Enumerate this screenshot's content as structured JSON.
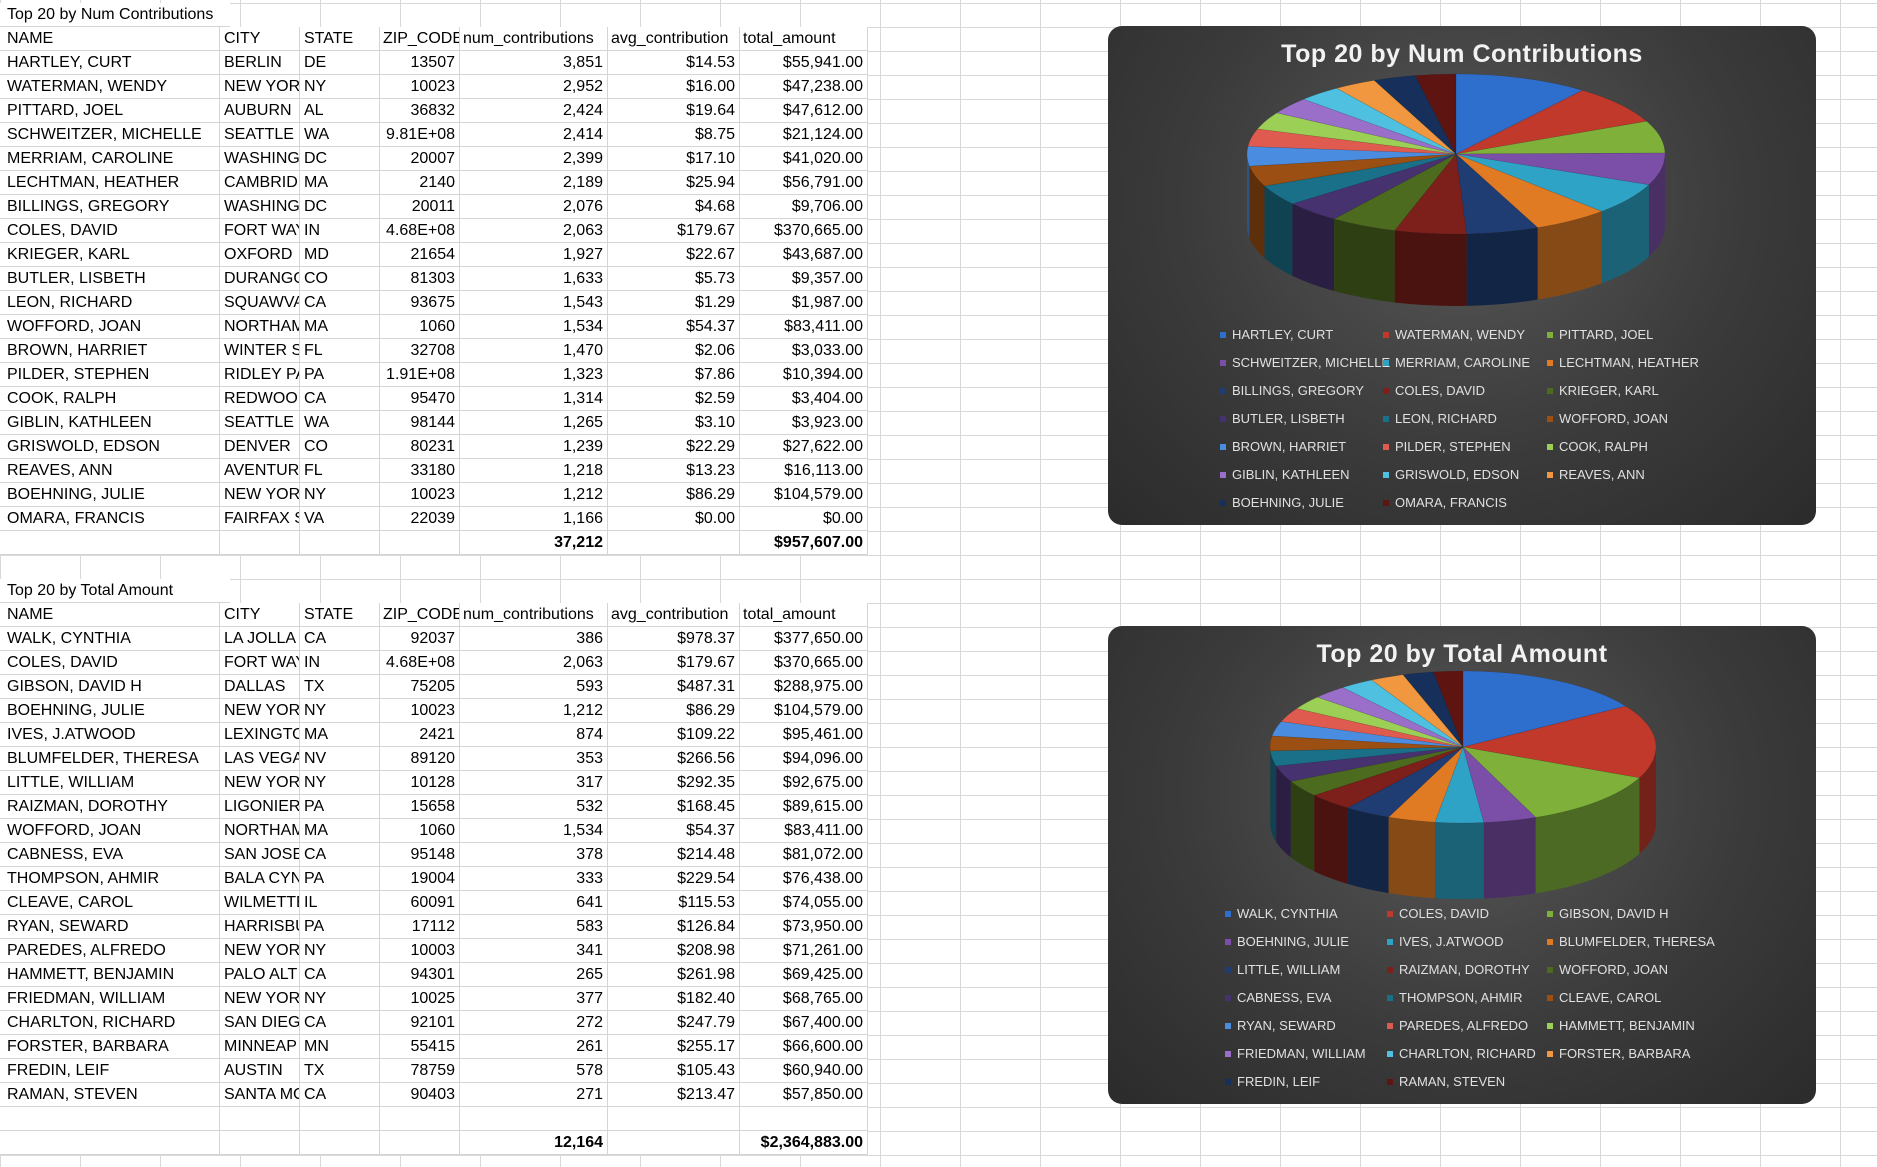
{
  "columns": [
    "NAME",
    "CITY",
    "STATE",
    "ZIP_CODE",
    "num_contributions",
    "avg_contribution",
    "total_amount"
  ],
  "palette": [
    "#2e6fce",
    "#c0392b",
    "#7fb03a",
    "#7b4fa8",
    "#2fa3c6",
    "#e07b24",
    "#1f3d73",
    "#7d1f1a",
    "#4d6b1f",
    "#473270",
    "#1a6f89",
    "#9c4f12",
    "#4a8de0",
    "#e05b4f",
    "#9ccf56",
    "#9a6fc9",
    "#4fc0e0",
    "#f0973f",
    "#16305b",
    "#5e1511"
  ],
  "table1": {
    "title": "Top 20 by Num Contributions",
    "rows": [
      [
        "HARTLEY, CURT",
        "BERLIN",
        "DE",
        "13507",
        "3,851",
        "$14.53",
        "$55,941.00"
      ],
      [
        "WATERMAN, WENDY",
        "NEW YORI",
        "NY",
        "10023",
        "2,952",
        "$16.00",
        "$47,238.00"
      ],
      [
        "PITTARD, JOEL",
        "AUBURN",
        "AL",
        "36832",
        "2,424",
        "$19.64",
        "$47,612.00"
      ],
      [
        "SCHWEITZER, MICHELLE",
        "SEATTLE",
        "WA",
        "9.81E+08",
        "2,414",
        "$8.75",
        "$21,124.00"
      ],
      [
        "MERRIAM, CAROLINE",
        "WASHING",
        "DC",
        "20007",
        "2,399",
        "$17.10",
        "$41,020.00"
      ],
      [
        "LECHTMAN, HEATHER",
        "CAMBRID",
        "MA",
        "2140",
        "2,189",
        "$25.94",
        "$56,791.00"
      ],
      [
        "BILLINGS, GREGORY",
        "WASHING",
        "DC",
        "20011",
        "2,076",
        "$4.68",
        "$9,706.00"
      ],
      [
        "COLES, DAVID",
        "FORT WAY",
        "IN",
        "4.68E+08",
        "2,063",
        "$179.67",
        "$370,665.00"
      ],
      [
        "KRIEGER, KARL",
        "OXFORD",
        "MD",
        "21654",
        "1,927",
        "$22.67",
        "$43,687.00"
      ],
      [
        "BUTLER, LISBETH",
        "DURANGO",
        "CO",
        "81303",
        "1,633",
        "$5.73",
        "$9,357.00"
      ],
      [
        "LEON, RICHARD",
        "SQUAWVA",
        "CA",
        "93675",
        "1,543",
        "$1.29",
        "$1,987.00"
      ],
      [
        "WOFFORD, JOAN",
        "NORTHAM",
        "MA",
        "1060",
        "1,534",
        "$54.37",
        "$83,411.00"
      ],
      [
        "BROWN, HARRIET",
        "WINTER SI",
        "FL",
        "32708",
        "1,470",
        "$2.06",
        "$3,033.00"
      ],
      [
        "PILDER, STEPHEN",
        "RIDLEY PA",
        "PA",
        "1.91E+08",
        "1,323",
        "$7.86",
        "$10,394.00"
      ],
      [
        "COOK, RALPH",
        "REDWOOI",
        "CA",
        "95470",
        "1,314",
        "$2.59",
        "$3,404.00"
      ],
      [
        "GIBLIN, KATHLEEN",
        "SEATTLE",
        "WA",
        "98144",
        "1,265",
        "$3.10",
        "$3,923.00"
      ],
      [
        "GRISWOLD, EDSON",
        "DENVER",
        "CO",
        "80231",
        "1,239",
        "$22.29",
        "$27,622.00"
      ],
      [
        "REAVES, ANN",
        "AVENTUR/",
        "FL",
        "33180",
        "1,218",
        "$13.23",
        "$16,113.00"
      ],
      [
        "BOEHNING, JULIE",
        "NEW YORI",
        "NY",
        "10023",
        "1,212",
        "$86.29",
        "$104,579.00"
      ],
      [
        "OMARA, FRANCIS",
        "FAIRFAX S",
        "VA",
        "22039",
        "1,166",
        "$0.00",
        "$0.00"
      ]
    ],
    "total_contributions": "37,212",
    "total_amount": "$957,607.00"
  },
  "table2": {
    "title": "Top 20 by Total Amount",
    "rows": [
      [
        "WALK, CYNTHIA",
        "LA JOLLA",
        "CA",
        "92037",
        "386",
        "$978.37",
        "$377,650.00"
      ],
      [
        "COLES, DAVID",
        "FORT WAY",
        "IN",
        "4.68E+08",
        "2,063",
        "$179.67",
        "$370,665.00"
      ],
      [
        "GIBSON, DAVID H",
        "DALLAS",
        "TX",
        "75205",
        "593",
        "$487.31",
        "$288,975.00"
      ],
      [
        "BOEHNING, JULIE",
        "NEW YORI",
        "NY",
        "10023",
        "1,212",
        "$86.29",
        "$104,579.00"
      ],
      [
        "IVES, J.ATWOOD",
        "LEXINGTO",
        "MA",
        "2421",
        "874",
        "$109.22",
        "$95,461.00"
      ],
      [
        "BLUMFELDER, THERESA",
        "LAS VEGAS",
        "NV",
        "89120",
        "353",
        "$266.56",
        "$94,096.00"
      ],
      [
        "LITTLE, WILLIAM",
        "NEW YORI",
        "NY",
        "10128",
        "317",
        "$292.35",
        "$92,675.00"
      ],
      [
        "RAIZMAN, DOROTHY",
        "LIGONIER",
        "PA",
        "15658",
        "532",
        "$168.45",
        "$89,615.00"
      ],
      [
        "WOFFORD, JOAN",
        "NORTHAM",
        "MA",
        "1060",
        "1,534",
        "$54.37",
        "$83,411.00"
      ],
      [
        "CABNESS, EVA",
        "SAN JOSE",
        "CA",
        "95148",
        "378",
        "$214.48",
        "$81,072.00"
      ],
      [
        "THOMPSON, AHMIR",
        "BALA CYN",
        "PA",
        "19004",
        "333",
        "$229.54",
        "$76,438.00"
      ],
      [
        "CLEAVE, CAROL",
        "WILMETTE",
        "IL",
        "60091",
        "641",
        "$115.53",
        "$74,055.00"
      ],
      [
        "RYAN, SEWARD",
        "HARRISBU",
        "PA",
        "17112",
        "583",
        "$126.84",
        "$73,950.00"
      ],
      [
        "PAREDES, ALFREDO",
        "NEW YORI",
        "NY",
        "10003",
        "341",
        "$208.98",
        "$71,261.00"
      ],
      [
        "HAMMETT, BENJAMIN",
        "PALO ALT",
        "CA",
        "94301",
        "265",
        "$261.98",
        "$69,425.00"
      ],
      [
        "FRIEDMAN, WILLIAM",
        "NEW YORI",
        "NY",
        "10025",
        "377",
        "$182.40",
        "$68,765.00"
      ],
      [
        "CHARLTON, RICHARD",
        "SAN DIEG",
        "CA",
        "92101",
        "272",
        "$247.79",
        "$67,400.00"
      ],
      [
        "FORSTER, BARBARA",
        "MINNEAP",
        "MN",
        "55415",
        "261",
        "$255.17",
        "$66,600.00"
      ],
      [
        "FREDIN, LEIF",
        "AUSTIN",
        "TX",
        "78759",
        "578",
        "$105.43",
        "$60,940.00"
      ],
      [
        "RAMAN, STEVEN",
        "SANTA MC",
        "CA",
        "90403",
        "271",
        "$213.47",
        "$57,850.00"
      ]
    ],
    "total_contributions": "12,164",
    "total_amount": "$2,364,883.00"
  },
  "chart_data": [
    {
      "type": "pie",
      "title": "Top 20 by Num Contributions",
      "categories": [
        "HARTLEY, CURT",
        "WATERMAN, WENDY",
        "PITTARD, JOEL",
        "SCHWEITZER, MICHELLE",
        "MERRIAM, CAROLINE",
        "LECHTMAN, HEATHER",
        "BILLINGS, GREGORY",
        "COLES, DAVID",
        "KRIEGER, KARL",
        "BUTLER, LISBETH",
        "LEON, RICHARD",
        "WOFFORD, JOAN",
        "BROWN, HARRIET",
        "PILDER, STEPHEN",
        "COOK, RALPH",
        "GIBLIN, KATHLEEN",
        "GRISWOLD, EDSON",
        "REAVES, ANN",
        "BOEHNING, JULIE",
        "OMARA, FRANCIS"
      ],
      "values": [
        3851,
        2952,
        2424,
        2414,
        2399,
        2189,
        2076,
        2063,
        1927,
        1633,
        1543,
        1534,
        1470,
        1323,
        1314,
        1265,
        1239,
        1218,
        1212,
        1166
      ],
      "legend": "bottom",
      "style": "3d"
    },
    {
      "type": "pie",
      "title": "Top 20 by Total Amount",
      "categories": [
        "WALK, CYNTHIA",
        "COLES, DAVID",
        "GIBSON, DAVID H",
        "BOEHNING, JULIE",
        "IVES, J.ATWOOD",
        "BLUMFELDER, THERESA",
        "LITTLE, WILLIAM",
        "RAIZMAN, DOROTHY",
        "WOFFORD, JOAN",
        "CABNESS, EVA",
        "THOMPSON, AHMIR",
        "CLEAVE, CAROL",
        "RYAN, SEWARD",
        "PAREDES, ALFREDO",
        "HAMMETT, BENJAMIN",
        "FRIEDMAN, WILLIAM",
        "CHARLTON, RICHARD",
        "FORSTER, BARBARA",
        "FREDIN, LEIF",
        "RAMAN, STEVEN"
      ],
      "values": [
        377650,
        370665,
        288975,
        104579,
        95461,
        94096,
        92675,
        89615,
        83411,
        81072,
        76438,
        74055,
        73950,
        71261,
        69425,
        68765,
        67400,
        66600,
        60940,
        57850
      ],
      "legend": "bottom",
      "style": "3d"
    }
  ]
}
